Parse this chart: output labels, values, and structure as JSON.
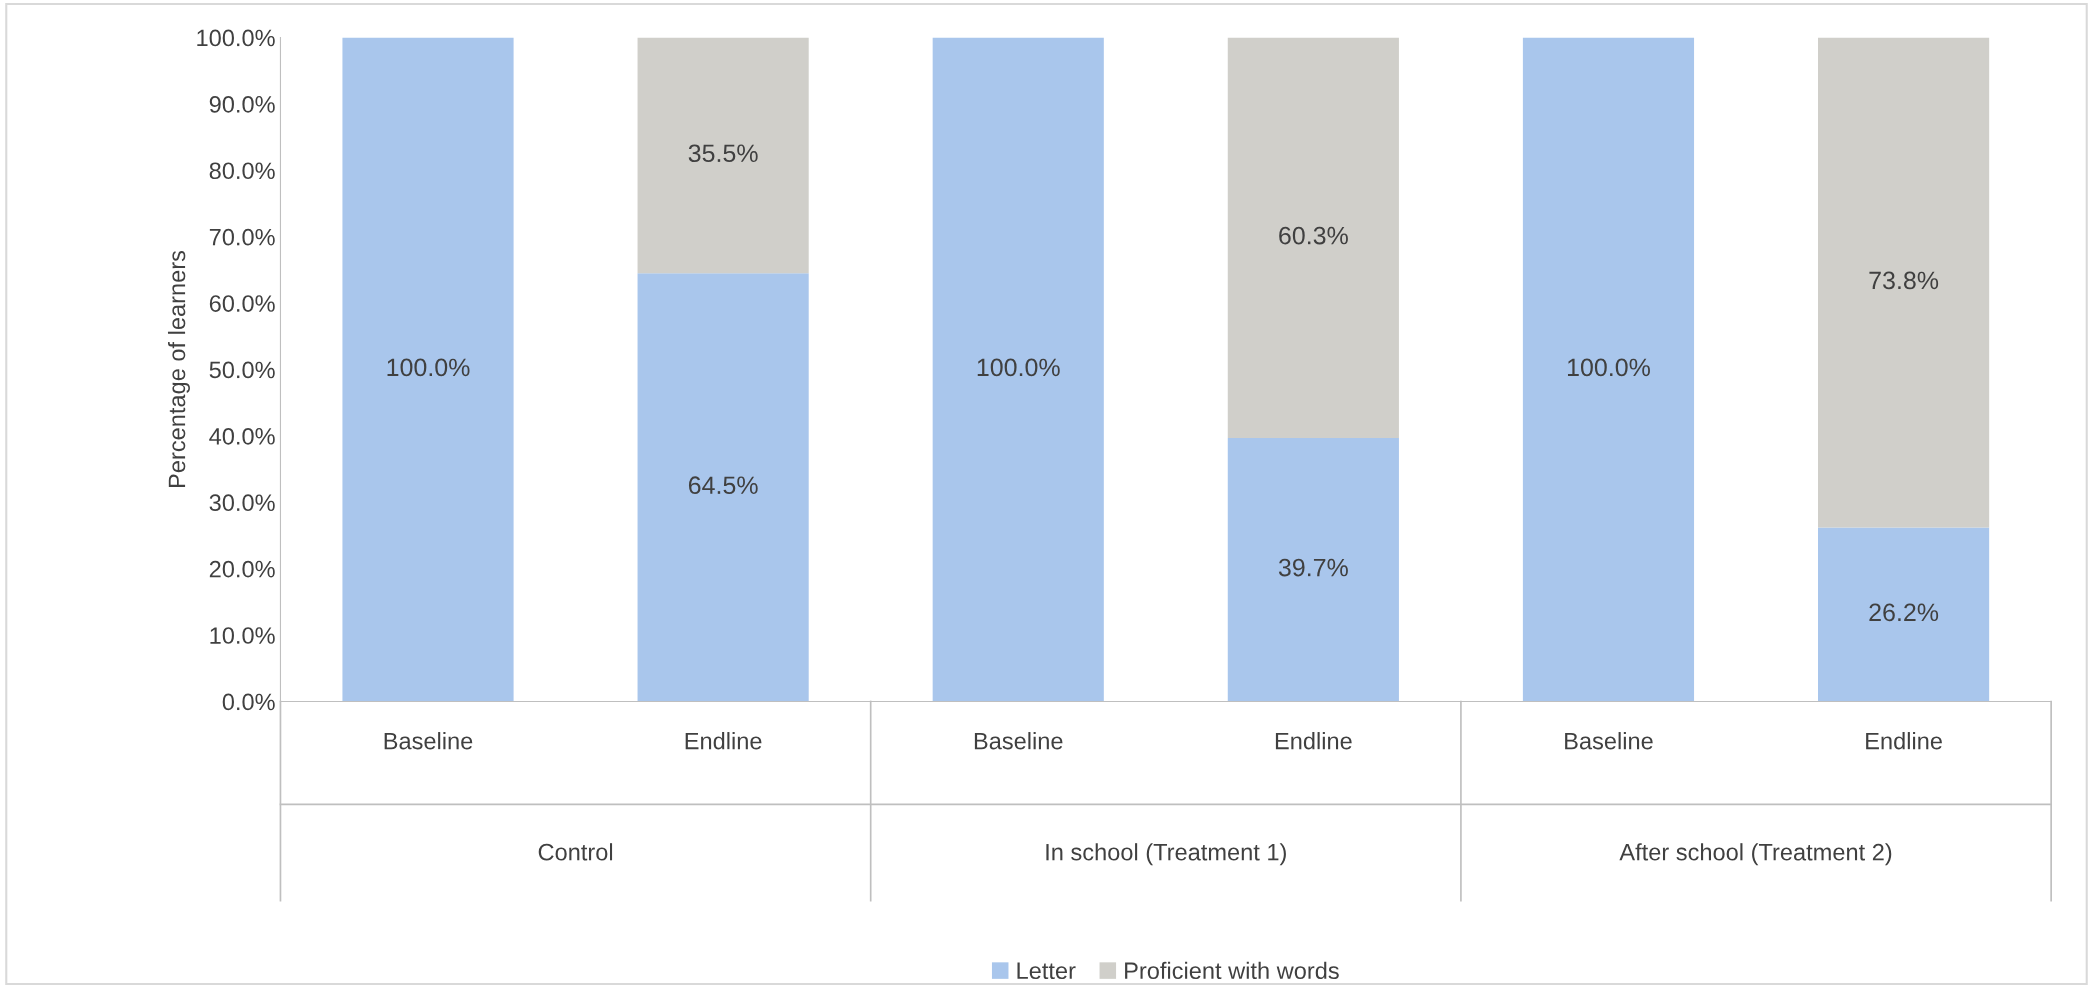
{
  "chart_data": {
    "type": "bar",
    "stacked": true,
    "ylabel": "Percentage of learners",
    "categories": [
      "Baseline",
      "Endline",
      "Baseline",
      "Endline",
      "Baseline",
      "Endline"
    ],
    "series": [
      {
        "name": "Letter",
        "color": "#a9c6ec",
        "values": [
          100.0,
          64.5,
          100.0,
          39.7,
          100.0,
          26.2
        ],
        "value_labels": [
          "100.0%",
          "64.5%",
          "100.0%",
          "39.7%",
          "100.0%",
          "26.2%"
        ]
      },
      {
        "name": "Proficient with words",
        "color": "#d0cfca",
        "values": [
          0,
          35.5,
          0,
          60.3,
          0,
          73.8
        ],
        "value_labels": [
          null,
          "35.5%",
          null,
          "60.3%",
          null,
          "73.8%"
        ]
      }
    ],
    "ylim": [
      0,
      100
    ],
    "yticks": [
      {
        "value": 0,
        "label": "0.0%"
      },
      {
        "value": 10,
        "label": "10.0%"
      },
      {
        "value": 20,
        "label": "20.0%"
      },
      {
        "value": 30,
        "label": "30.0%"
      },
      {
        "value": 40,
        "label": "40.0%"
      },
      {
        "value": 50,
        "label": "50.0%"
      },
      {
        "value": 60,
        "label": "60.0%"
      },
      {
        "value": 70,
        "label": "70.0%"
      },
      {
        "value": 80,
        "label": "80.0%"
      },
      {
        "value": 90,
        "label": "90.0%"
      },
      {
        "value": 100,
        "label": "100.0%"
      }
    ],
    "annotations": [
      "Control",
      "In school (Treatment 1)",
      "After school (Treatment 2)"
    ],
    "grid": false,
    "legend": "bottom"
  }
}
